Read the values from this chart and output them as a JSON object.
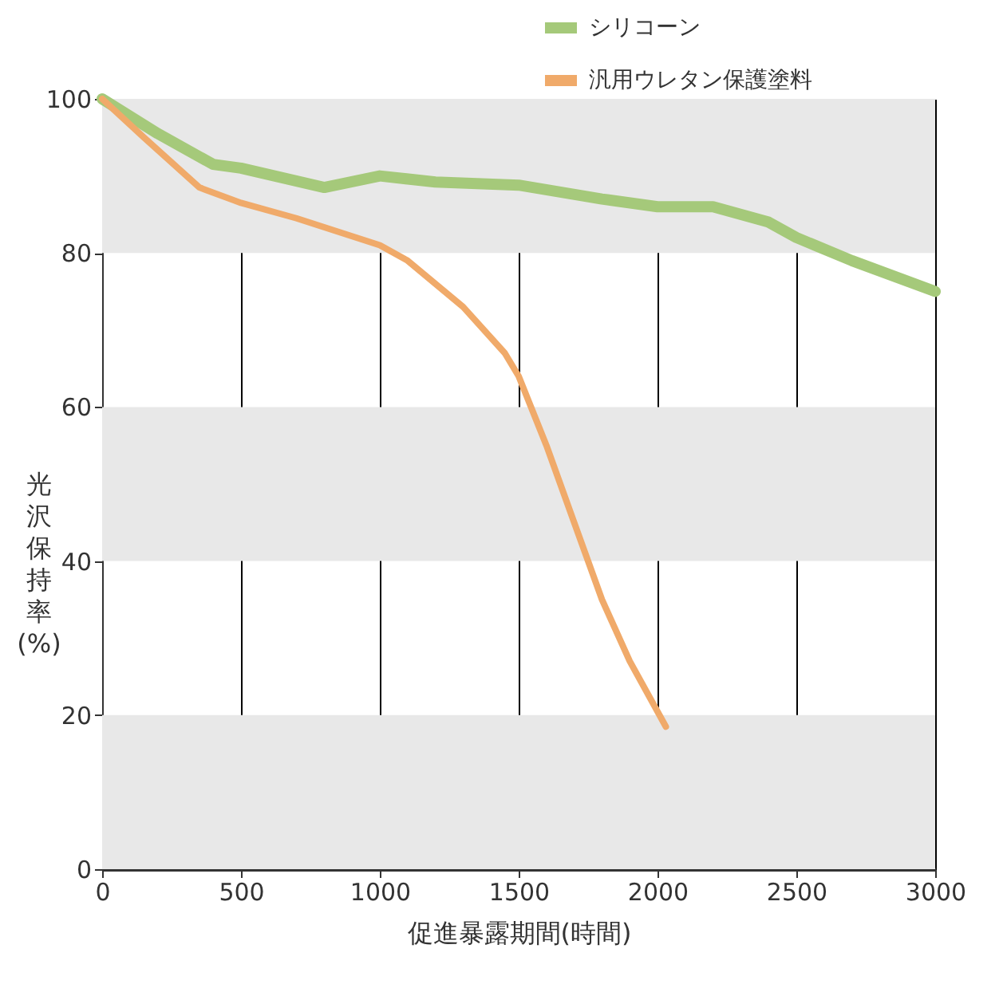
{
  "chart_data": {
    "type": "line",
    "xlabel": "促進暴露期間(時間)",
    "ylabel": "光沢保持率(%)",
    "xlim": [
      0,
      3000
    ],
    "xticks": [
      0,
      500,
      1000,
      1500,
      2000,
      2500,
      3000
    ],
    "ylim": [
      0,
      100
    ],
    "yticks": [
      0,
      20,
      40,
      60,
      80,
      100
    ],
    "grid": "x",
    "legend": "top right",
    "marker": "none",
    "line_style": "solid",
    "bands": [
      {
        "axis": "y",
        "from": 0,
        "to": 20,
        "color": "#e8e8e8"
      },
      {
        "axis": "y",
        "from": 40,
        "to": 60,
        "color": "#e8e8e8"
      },
      {
        "axis": "y",
        "from": 80,
        "to": 100,
        "color": "#e8e8e8"
      }
    ],
    "series": [
      {
        "name": "シリコーン",
        "color": "#a5c97a",
        "x": [
          0,
          200,
          400,
          500,
          800,
          1000,
          1200,
          1500,
          1800,
          2000,
          2200,
          2400,
          2500,
          2700,
          3000
        ],
        "values": [
          100,
          95.5,
          91.5,
          91,
          88.5,
          90,
          89.2,
          88.8,
          87,
          86,
          86,
          84,
          82,
          79,
          75
        ]
      },
      {
        "name": "汎用ウレタン保護塗料",
        "color": "#f0aa6a",
        "x": [
          0,
          150,
          350,
          500,
          700,
          1000,
          1100,
          1300,
          1450,
          1500,
          1600,
          1700,
          1800,
          1900,
          2030
        ],
        "values": [
          100,
          95,
          88.5,
          86.5,
          84.5,
          81,
          79,
          73,
          67,
          64,
          55,
          45,
          35,
          27,
          18.5
        ]
      }
    ]
  }
}
